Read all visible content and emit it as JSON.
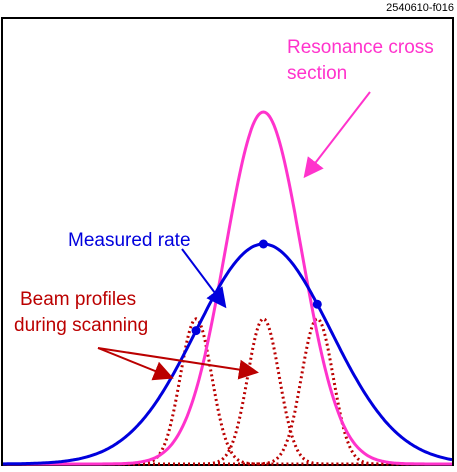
{
  "figure_id": "2540610-f016",
  "labels": {
    "resonance_line1": "Resonance cross",
    "resonance_line2": "section",
    "measured": "Measured rate",
    "beam_line1": "Beam profiles",
    "beam_line2": "during scanning"
  },
  "colors": {
    "resonance": "#ff33cc",
    "measured": "#0000dd",
    "beam": "#bb0000",
    "frame": "#000000"
  },
  "diagram": {
    "resonance_curve": {
      "center": 0.58,
      "width": 0.085,
      "peak": 0.8
    },
    "measured_curve": {
      "center": 0.58,
      "width": 0.15,
      "peak": 0.5
    },
    "beam_profiles": [
      {
        "center": 0.43,
        "width": 0.035,
        "peak": 0.33
      },
      {
        "center": 0.58,
        "width": 0.035,
        "peak": 0.33
      },
      {
        "center": 0.7,
        "width": 0.035,
        "peak": 0.33
      }
    ],
    "scan_points": [
      0.43,
      0.58,
      0.7
    ]
  }
}
